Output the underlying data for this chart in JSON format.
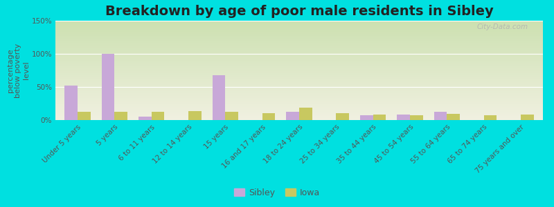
{
  "title": "Breakdown by age of poor male residents in Sibley",
  "ylabel": "percentage\nbelow poverty\nlevel",
  "categories": [
    "Under 5 years",
    "5 years",
    "6 to 11 years",
    "12 to 14 years",
    "15 years",
    "16 and 17 years",
    "18 to 24 years",
    "25 to 34 years",
    "35 to 44 years",
    "45 to 54 years",
    "55 to 64 years",
    "65 to 74 years",
    "75 years and over"
  ],
  "sibley_values": [
    52,
    100,
    5,
    0,
    68,
    0,
    13,
    0,
    7,
    8,
    13,
    0,
    0
  ],
  "iowa_values": [
    13,
    12,
    12,
    14,
    12,
    10,
    19,
    10,
    8,
    7,
    9,
    7,
    8
  ],
  "sibley_color": "#c8a8d8",
  "iowa_color": "#c8c860",
  "background_color": "#00e0e0",
  "grad_top": "#cce0b0",
  "grad_bottom": "#f0f0e0",
  "ylim": [
    0,
    150
  ],
  "yticks": [
    0,
    50,
    100,
    150
  ],
  "ytick_labels": [
    "0%",
    "50%",
    "100%",
    "150%"
  ],
  "title_fontsize": 14,
  "axis_label_fontsize": 8,
  "tick_fontsize": 7.5,
  "legend_labels": [
    "Sibley",
    "Iowa"
  ],
  "watermark": "City-Data.com",
  "bar_width": 0.35
}
